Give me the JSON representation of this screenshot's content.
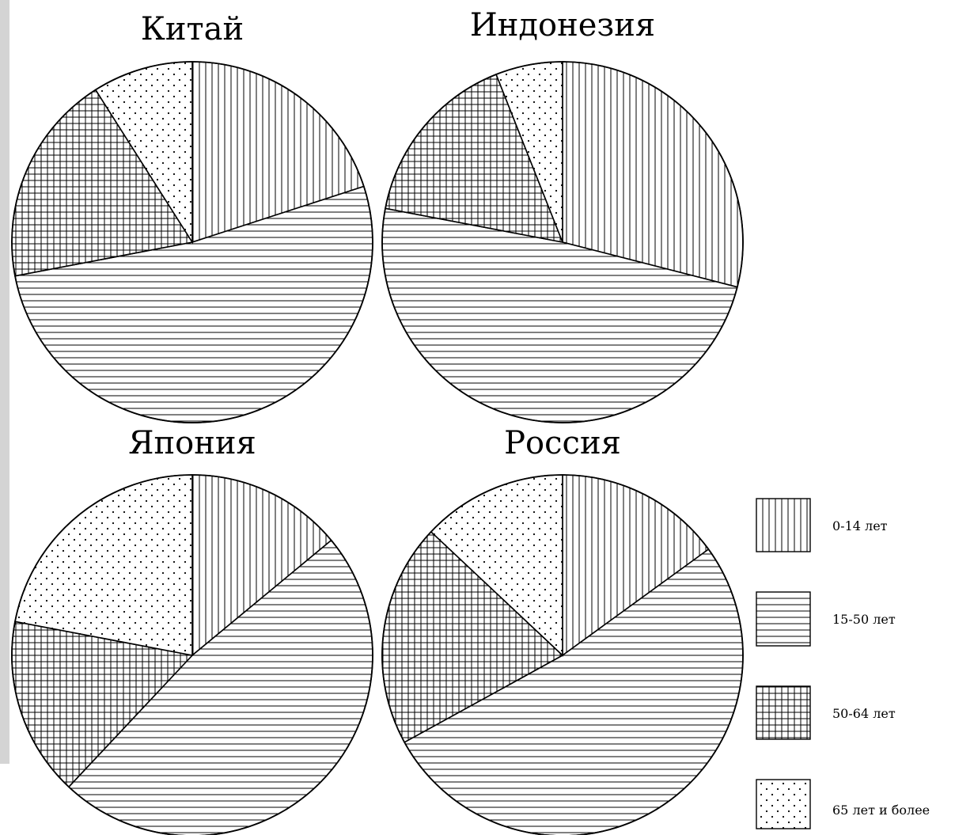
{
  "chart_data": [
    {
      "type": "pie",
      "title": "Китай",
      "slices": [
        {
          "label": "0-14 лет",
          "value": 20
        },
        {
          "label": "15-50 лет",
          "value": 52
        },
        {
          "label": "50-64 лет",
          "value": 19
        },
        {
          "label": "65 лет и более",
          "value": 9
        }
      ]
    },
    {
      "type": "pie",
      "title": "Индонезия",
      "slices": [
        {
          "label": "0-14 лет",
          "value": 29
        },
        {
          "label": "15-50 лет",
          "value": 49
        },
        {
          "label": "50-64 лет",
          "value": 16
        },
        {
          "label": "65 лет и более",
          "value": 6
        }
      ]
    },
    {
      "type": "pie",
      "title": "Япония",
      "slices": [
        {
          "label": "0-14 лет",
          "value": 14
        },
        {
          "label": "15-50 лет",
          "value": 48
        },
        {
          "label": "50-64 лет",
          "value": 16
        },
        {
          "label": "65 лет и более",
          "value": 22
        }
      ]
    },
    {
      "type": "pie",
      "title": "Россия",
      "slices": [
        {
          "label": "0-14 лет",
          "value": 15
        },
        {
          "label": "15-50 лет",
          "value": 52
        },
        {
          "label": "50-64 лет",
          "value": 20
        },
        {
          "label": "65 лет и более",
          "value": 13
        }
      ]
    }
  ],
  "legend": {
    "placement": "bottom-right",
    "items": [
      {
        "label": "0-14 лет",
        "pattern": "vertical-lines"
      },
      {
        "label": "15-50 лет",
        "pattern": "horizontal-lines"
      },
      {
        "label": "50-64 лет",
        "pattern": "grid"
      },
      {
        "label": "65 лет и более",
        "pattern": "dots"
      }
    ]
  },
  "colors": {
    "ink": "#000000",
    "background": "#ffffff",
    "side_strip": "#d4d4d4"
  }
}
